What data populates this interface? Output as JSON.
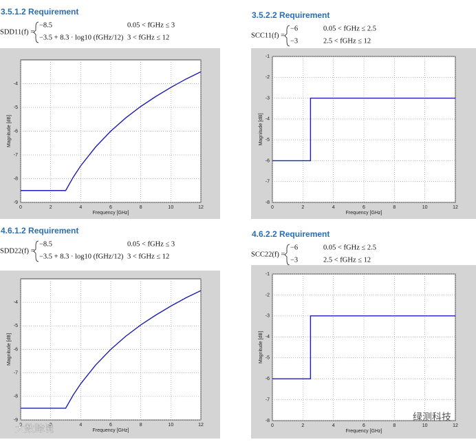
{
  "chart_data": [
    {
      "type": "line",
      "title": "3.5.1.2 Requirement",
      "formula": {
        "lhs": "SDD11(f) =",
        "cases": [
          [
            "−8.5",
            "0.05 <  fGHz ≤ 3"
          ],
          [
            "−3.5 + 8.3 · log10 (fGHz/12)",
            "3 <  fGHz  ≤ 12"
          ]
        ]
      },
      "xlabel": "Frequency [GHz]",
      "ylabel": "Magnitude [dB]",
      "x": [
        0,
        3,
        3.5,
        4,
        5,
        6,
        7,
        8,
        9,
        10,
        11,
        12
      ],
      "series": [
        {
          "color": "#1c1cb0",
          "values": [
            -8.5,
            -8.5,
            -7.94,
            -7.46,
            -6.66,
            -6.0,
            -5.44,
            -4.96,
            -4.54,
            -4.16,
            -3.81,
            -3.5
          ]
        }
      ],
      "xlim": [
        0,
        12
      ],
      "xticks": [
        0,
        2,
        4,
        6,
        8,
        10,
        12
      ],
      "ylim": [
        -9,
        -3
      ],
      "yticks": [
        -9,
        -8,
        -7,
        -6,
        -5,
        -4
      ],
      "grid": true
    },
    {
      "type": "line",
      "title": "3.5.2.2 Requirement",
      "formula": {
        "lhs": "SCC11(f) =",
        "cases": [
          [
            "−6",
            "0.05 <  fGHz ≤ 2.5"
          ],
          [
            "−3",
            "2.5 <  fGHz ≤ 12"
          ]
        ]
      },
      "xlabel": "Frequency [GHz]",
      "ylabel": "Magnitude [dB]",
      "x": [
        0,
        2.5,
        2.5,
        12
      ],
      "series": [
        {
          "color": "#1c1cb0",
          "values": [
            -6,
            -6,
            -3,
            -3
          ]
        }
      ],
      "xlim": [
        0,
        12
      ],
      "xticks": [
        0,
        2,
        4,
        6,
        8,
        10,
        12
      ],
      "ylim": [
        -8,
        -1
      ],
      "yticks": [
        -8,
        -7,
        -6,
        -5,
        -4,
        -3,
        -2,
        -1
      ],
      "grid": true
    },
    {
      "type": "line",
      "title": "4.6.1.2 Requirement",
      "formula": {
        "lhs": "SDD22(f) =",
        "cases": [
          [
            "−8.5",
            "0.05 <  fGHz ≤ 3"
          ],
          [
            "−3.5 + 8.3 · log10 (fGHz/12)",
            "3 <  fGHz  ≤ 12"
          ]
        ]
      },
      "xlabel": "Frequency [GHz]",
      "ylabel": "Magnitude [dB]",
      "x": [
        0,
        3,
        3.5,
        4,
        5,
        6,
        7,
        8,
        9,
        10,
        11,
        12
      ],
      "series": [
        {
          "color": "#1c1cb0",
          "values": [
            -8.5,
            -8.5,
            -7.94,
            -7.46,
            -6.66,
            -6.0,
            -5.44,
            -4.96,
            -4.54,
            -4.16,
            -3.81,
            -3.5
          ]
        }
      ],
      "xlim": [
        0,
        12
      ],
      "xticks": [
        0,
        2,
        4,
        6,
        8,
        10,
        12
      ],
      "ylim": [
        -9,
        -3
      ],
      "yticks": [
        -9,
        -8,
        -7,
        -6,
        -5,
        -4
      ],
      "grid": true
    },
    {
      "type": "line",
      "title": "4.6.2.2 Requirement",
      "formula": {
        "lhs": "SCC22(f) =",
        "cases": [
          [
            "−6",
            "0.05 <  fGHz ≤ 2.5"
          ],
          [
            "−3",
            "2.5 <  fGHz ≤ 12"
          ]
        ]
      },
      "xlabel": "Frequency [GHz]",
      "ylabel": "Magnitude [dB]",
      "x": [
        0,
        2.5,
        2.5,
        12
      ],
      "series": [
        {
          "color": "#1c1cb0",
          "values": [
            -6,
            -6,
            -3,
            -3
          ]
        }
      ],
      "xlim": [
        0,
        12
      ],
      "xticks": [
        0,
        2,
        4,
        6,
        8,
        10,
        12
      ],
      "ylim": [
        -8,
        -1
      ],
      "yticks": [
        -8,
        -7,
        -6,
        -5,
        -4,
        -3,
        -2,
        -1
      ],
      "grid": true
    }
  ],
  "watermarks": [
    "大数跨境",
    "绿测科技"
  ]
}
